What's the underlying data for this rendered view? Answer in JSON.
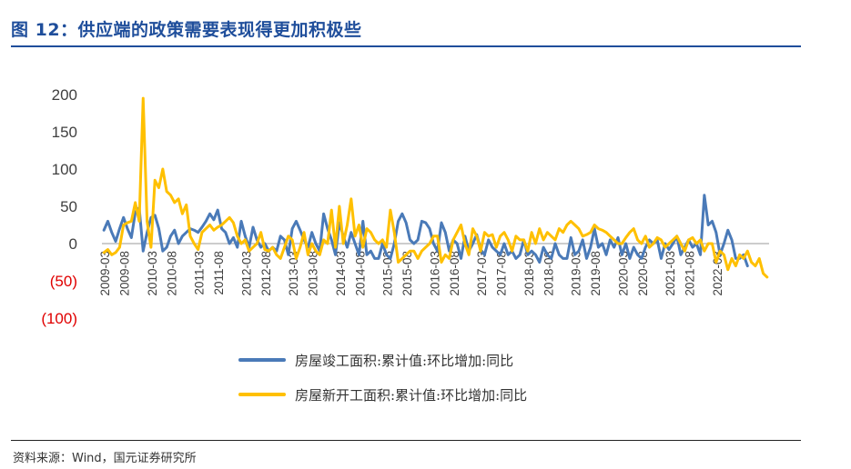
{
  "figure": {
    "title": "图 12：供应端的政策需要表现得更加积极些",
    "source": "资料来源：Wind，国元证券研究所"
  },
  "colors": {
    "title": "#1f4e9b",
    "series_completed": "#4a7ab8",
    "series_new": "#ffc000",
    "negative_tick": "#e00000",
    "axis_text": "#404040"
  },
  "chart_data": {
    "type": "line",
    "title": "",
    "xlabel": "",
    "ylabel": "",
    "ylim": [
      -100,
      200
    ],
    "yticks": [
      200,
      150,
      100,
      50,
      0,
      -50,
      -100
    ],
    "ytick_labels": [
      "200",
      "150",
      "100",
      "50",
      "0",
      "(50)",
      "(100)"
    ],
    "x_start": "2009-03",
    "x_step_months": 1,
    "xtick_labels": [
      "2009-03",
      "2009-08",
      "2010-03",
      "2010-08",
      "2011-03",
      "2011-08",
      "2012-03",
      "2012-08",
      "2013-03",
      "2013-08",
      "2014-03",
      "2014-08",
      "2015-03",
      "2015-08",
      "2016-03",
      "2016-08",
      "2017-03",
      "2017-08",
      "2018-03",
      "2018-08",
      "2019-03",
      "2019-08",
      "2020-03",
      "2020-08",
      "2021-03",
      "2021-08",
      "2022-03"
    ],
    "legend_position": "bottom",
    "series": [
      {
        "name": "房屋竣工面积:累计值:环比增加:同比",
        "values": [
          18,
          30,
          15,
          3,
          20,
          35,
          20,
          8,
          42,
          48,
          -10,
          15,
          35,
          38,
          20,
          -10,
          -5,
          10,
          18,
          0,
          10,
          15,
          20,
          18,
          15,
          22,
          30,
          40,
          32,
          45,
          20,
          15,
          0,
          8,
          -5,
          30,
          10,
          -5,
          22,
          5,
          -5,
          0,
          -10,
          -5,
          -10,
          10,
          5,
          -15,
          20,
          30,
          18,
          5,
          -5,
          15,
          0,
          -10,
          40,
          20,
          5,
          -15,
          28,
          10,
          -5,
          15,
          0,
          -15,
          30,
          -15,
          -10,
          -20,
          -20,
          0,
          -15,
          -20,
          0,
          30,
          40,
          28,
          5,
          0,
          5,
          30,
          28,
          20,
          0,
          -10,
          28,
          15,
          -10,
          5,
          0,
          -20,
          10,
          -10,
          0,
          12,
          -8,
          -15,
          5,
          -5,
          -10,
          -15,
          0,
          -15,
          -10,
          -20,
          -15,
          5,
          -15,
          -10,
          -15,
          -25,
          -5,
          -15,
          -20,
          0,
          -15,
          -20,
          -20,
          8,
          -15,
          -10,
          5,
          -20,
          -5,
          20,
          -5,
          0,
          -15,
          5,
          -5,
          8,
          -15,
          0,
          -20,
          -5,
          -15,
          -20,
          -5,
          5,
          0,
          5,
          -20,
          0,
          -8,
          0,
          10,
          -15,
          -5,
          5,
          -5,
          0,
          -15,
          65,
          25,
          30,
          15,
          -15,
          0,
          18,
          5,
          -20,
          -20,
          -15,
          -30
        ],
        "color_key": "series_completed"
      },
      {
        "name": "房屋新开工面积:累计值:环比增加:同比",
        "values": [
          -12,
          -8,
          -15,
          -12,
          -5,
          25,
          28,
          30,
          55,
          30,
          195,
          30,
          -5,
          85,
          75,
          100,
          70,
          65,
          55,
          60,
          40,
          52,
          10,
          0,
          -8,
          15,
          20,
          25,
          18,
          22,
          25,
          30,
          35,
          28,
          10,
          0,
          5,
          -10,
          -5,
          0,
          15,
          -8,
          -10,
          -5,
          -15,
          -20,
          -5,
          10,
          5,
          -20,
          -5,
          15,
          -15,
          0,
          -10,
          -15,
          5,
          0,
          45,
          -5,
          50,
          0,
          25,
          60,
          10,
          25,
          -5,
          20,
          15,
          5,
          0,
          5,
          -5,
          45,
          15,
          -25,
          -20,
          -15,
          -10,
          -10,
          -20,
          -10,
          -5,
          0,
          10,
          10,
          -25,
          -15,
          -20,
          5,
          15,
          25,
          0,
          -15,
          20,
          10,
          -10,
          15,
          10,
          12,
          -5,
          10,
          15,
          5,
          -10,
          10,
          5,
          5,
          -10,
          15,
          0,
          20,
          5,
          15,
          10,
          5,
          20,
          15,
          25,
          30,
          25,
          20,
          10,
          12,
          15,
          25,
          20,
          18,
          15,
          10,
          5,
          0,
          0,
          8,
          15,
          20,
          5,
          0,
          10,
          -5,
          0,
          8,
          5,
          -5,
          0,
          5,
          10,
          0,
          -10,
          5,
          8,
          0,
          5,
          -10,
          0,
          0,
          -25,
          -10,
          -15,
          -35,
          -20,
          -30,
          -15,
          -20,
          -10,
          -25,
          -30,
          -20,
          -40,
          -45
        ],
        "color_key": "series_new"
      }
    ]
  }
}
